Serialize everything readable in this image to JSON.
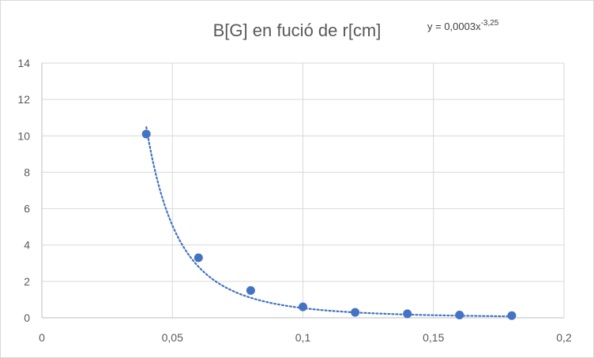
{
  "chart_data": {
    "type": "scatter",
    "title": "B[G] en fució de r[cm]",
    "xlabel": "",
    "ylabel": "",
    "xlim": [
      0,
      0.2
    ],
    "ylim": [
      0,
      14
    ],
    "x_ticks": [
      0,
      0.05,
      0.1,
      0.15,
      0.2
    ],
    "x_tick_labels": [
      "0",
      "0,05",
      "0,1",
      "0,15",
      "0,2"
    ],
    "y_ticks": [
      0,
      2,
      4,
      6,
      8,
      10,
      12,
      14
    ],
    "y_tick_labels": [
      "0",
      "2",
      "4",
      "6",
      "8",
      "10",
      "12",
      "14"
    ],
    "grid": true,
    "series": [
      {
        "x": [
          0.04,
          0.06,
          0.08,
          0.1,
          0.12,
          0.14,
          0.16,
          0.18
        ],
        "y": [
          10.1,
          3.3,
          1.5,
          0.6,
          0.3,
          0.22,
          0.15,
          0.12
        ],
        "color": "#4472c4"
      }
    ],
    "trendline": {
      "type": "power",
      "coefficient": 0.0003,
      "exponent": -3.25,
      "x_range": [
        0.04,
        0.18
      ],
      "color": "#4472c4",
      "style": "dotted"
    },
    "annotations": {
      "equation_base": "y = 0,0003x",
      "equation_exponent": "-3,25"
    }
  }
}
